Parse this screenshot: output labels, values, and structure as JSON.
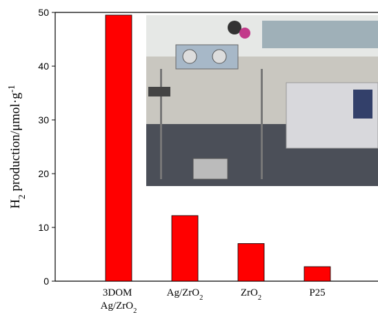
{
  "chart_data": {
    "type": "bar",
    "y_label": "H2 production/μmol·g-1",
    "categories": [
      "3DOM Ag/ZrO2",
      "Ag/ZrO2",
      "ZrO2",
      "P25"
    ],
    "values": [
      49.5,
      12.2,
      7.0,
      2.7
    ],
    "color": "#ff0000",
    "ylim": [
      0,
      50
    ],
    "yticks": [
      0,
      10,
      20,
      30,
      40,
      50
    ]
  }
}
